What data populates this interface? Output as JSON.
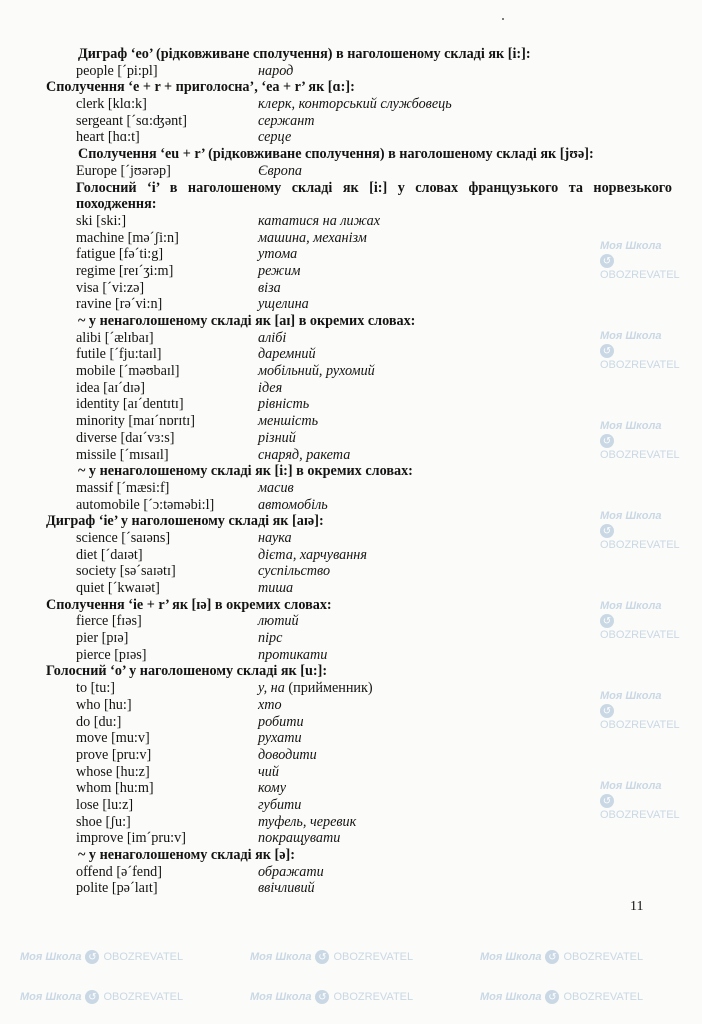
{
  "watermark": {
    "school": "Моя Школа",
    "brand": "OBOZREVATEL",
    "logo_icon": "obozrevatel-circle-logo"
  },
  "lines": [
    {
      "type": "heading",
      "indent": 1,
      "text": "Диграф ‘eo’ (рідковживане сполучення) в наголошеному складі як [i:]:"
    },
    {
      "type": "entry",
      "word": "people [ˊpi:pl]",
      "tr": "народ"
    },
    {
      "type": "heading",
      "indent": 0,
      "text": "Сполучення ‘e + r + приголосна’, ‘ea + r’ як [ɑ:]:"
    },
    {
      "type": "entry",
      "word": "clerk [klɑ:k]",
      "tr": "клерк, конторський службовець"
    },
    {
      "type": "entry",
      "word": "sergeant [ˊsɑ:ʤənt]",
      "tr": "сержант"
    },
    {
      "type": "entry",
      "word": "heart [hɑ:t]",
      "tr": "серце"
    },
    {
      "type": "heading",
      "indent": 1,
      "text": "Сполучення ‘eu + r’ (рідковживане сполучення) в наголошеному складі як [jʊə]:"
    },
    {
      "type": "entry",
      "word": "Europe [ˊjʊərəp]",
      "tr": "Європа"
    },
    {
      "type": "heading",
      "indent": 2,
      "text": "Голосний ‘i’ в наголошеному складі як [i:] у словах французького та норвезького походження:"
    },
    {
      "type": "entry",
      "word": "ski [ski:]",
      "tr": "кататися на лижах"
    },
    {
      "type": "entry",
      "word": "machine [məˊʃi:n]",
      "tr": "машина, механізм"
    },
    {
      "type": "entry",
      "word": "fatigue [fəˊti:g]",
      "tr": "утома"
    },
    {
      "type": "entry",
      "word": "regime [reɪˊʒi:m]",
      "tr": "режим"
    },
    {
      "type": "entry",
      "word": "visa [ˊvi:zə]",
      "tr": "віза"
    },
    {
      "type": "entry",
      "word": "ravine [rəˊvi:n]",
      "tr": "ущелина"
    },
    {
      "type": "heading",
      "indent": 1,
      "text": "~ у ненаголошеному складі як [aɪ] в окремих словах:"
    },
    {
      "type": "entry",
      "word": "alibi [ˊælɪbaɪ]",
      "tr": "алібі"
    },
    {
      "type": "entry",
      "word": "futile [ˊfju:taɪl]",
      "tr": "даремний"
    },
    {
      "type": "entry",
      "word": "mobile [ˊməʊbaɪl]",
      "tr": "мобільний, рухомий"
    },
    {
      "type": "entry",
      "word": "idea [aɪˊdɪə]",
      "tr": "ідея"
    },
    {
      "type": "entry",
      "word": "identity [aɪˊdentɪtɪ]",
      "tr": "рівність"
    },
    {
      "type": "entry",
      "word": "minority [maɪˊnɒrɪtɪ]",
      "tr": "меншість"
    },
    {
      "type": "entry",
      "word": "diverse [daɪˊvɜ:s]",
      "tr": "різний"
    },
    {
      "type": "entry",
      "word": "missile [ˊmɪsaɪl]",
      "tr": "снаряд, ракета"
    },
    {
      "type": "heading",
      "indent": 1,
      "text": "~ у ненаголошеному складі як [i:] в окремих словах:"
    },
    {
      "type": "entry",
      "word": "massif [ˊmæsi:f]",
      "tr": "масив"
    },
    {
      "type": "entry",
      "word": "automobile [ˊɔ:təməbi:l]",
      "tr": "автомобіль"
    },
    {
      "type": "heading",
      "indent": 0,
      "text": "Диграф ‘ie’ у наголошеному складі як [aɪə]:"
    },
    {
      "type": "entry",
      "word": "science [ˊsaɪəns]",
      "tr": "наука"
    },
    {
      "type": "entry",
      "word": "diet [ˊdaɪət]",
      "tr": "дієта, харчування"
    },
    {
      "type": "entry",
      "word": "society [səˊsaɪətɪ]",
      "tr": "суспільство"
    },
    {
      "type": "entry",
      "word": "quiet [ˊkwaɪət]",
      "tr": "тиша"
    },
    {
      "type": "heading",
      "indent": 0,
      "text": "Сполучення ‘ie + r’ як [ɪə] в окремих словах:"
    },
    {
      "type": "entry",
      "word": "fierce [fɪəs]",
      "tr": "лютий"
    },
    {
      "type": "entry",
      "word": "pier [pɪə]",
      "tr": "пірс"
    },
    {
      "type": "entry",
      "word": "pierce [pɪəs]",
      "tr": "протикати"
    },
    {
      "type": "heading",
      "indent": 0,
      "text": "Голосний ‘o’ у наголошеному складі як [u:]:"
    },
    {
      "type": "entry",
      "word": "to [tu:]",
      "tr": "у, на",
      "note": "(прийменник)"
    },
    {
      "type": "entry",
      "word": "who [hu:]",
      "tr": "хто"
    },
    {
      "type": "entry",
      "word": "do [du:]",
      "tr": "робити"
    },
    {
      "type": "entry",
      "word": "move [mu:v]",
      "tr": "рухати"
    },
    {
      "type": "entry",
      "word": "prove [pru:v]",
      "tr": "доводити"
    },
    {
      "type": "entry",
      "word": "whose [hu:z]",
      "tr": "чий"
    },
    {
      "type": "entry",
      "word": "whom [hu:m]",
      "tr": "кому"
    },
    {
      "type": "entry",
      "word": "lose [lu:z]",
      "tr": "губити"
    },
    {
      "type": "entry",
      "word": "shoe [ʃu:]",
      "tr": "туфель, черевик"
    },
    {
      "type": "entry",
      "word": "improve [imˊpru:v]",
      "tr": "покращувати"
    },
    {
      "type": "heading",
      "indent": 1,
      "text": "~ у ненаголошеному складі як [ə]:"
    },
    {
      "type": "entry",
      "word": "offend [əˊfend]",
      "tr": "ображати"
    },
    {
      "type": "entry",
      "word": "polite [pəˊlaɪt]",
      "tr": "ввічливий"
    }
  ],
  "page_number": "11"
}
